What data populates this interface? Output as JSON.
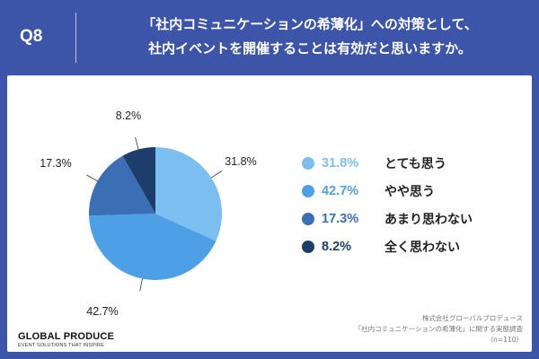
{
  "header": {
    "qnum": "Q8",
    "line1": "「社内コミュニケーションの希薄化」への対策として、",
    "line2": "社内イベントを開催することは有効だと思いますか。"
  },
  "chart_data": {
    "type": "pie",
    "title": "",
    "slices": [
      {
        "label": "とても思う",
        "value": 31.8,
        "display": "31.8%",
        "color": "#7dbef0"
      },
      {
        "label": "やや思う",
        "value": 42.7,
        "display": "42.7%",
        "color": "#4d9fe6"
      },
      {
        "label": "あまり思わない",
        "value": 17.3,
        "display": "17.3%",
        "color": "#3a6fb5"
      },
      {
        "label": "全く思わない",
        "value": 8.2,
        "display": "8.2%",
        "color": "#1d3d6b"
      }
    ],
    "start": "12 o'clock, clockwise",
    "legend_placement": "right"
  },
  "footer": {
    "brand_name": "GLOBAL PRODUCE",
    "brand_tagline": "EVENT SOLUTIONS THAT INSPIRE",
    "source_line1": "株式会社グローバルプロデュース",
    "source_line2": "「社内コミュニケーションの希薄化」に関する実態調査",
    "source_line3": "（n=110）"
  }
}
